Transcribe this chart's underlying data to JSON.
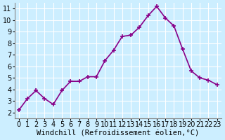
{
  "x": [
    0,
    1,
    2,
    3,
    4,
    5,
    6,
    7,
    8,
    9,
    10,
    11,
    12,
    13,
    14,
    15,
    16,
    17,
    18,
    19,
    20,
    21,
    22,
    23
  ],
  "y": [
    2.2,
    3.2,
    3.9,
    3.2,
    2.7,
    3.9,
    4.7,
    4.7,
    5.1,
    5.1,
    6.5,
    7.4,
    8.6,
    8.7,
    9.4,
    10.4,
    11.2,
    10.2,
    9.5,
    7.5,
    5.6,
    5.0,
    4.8,
    4.4
  ],
  "line_color": "#880088",
  "marker": "+",
  "marker_size": 5,
  "bg_color": "#cceeff",
  "grid_color": "#ffffff",
  "xlabel": "Windchill (Refroidissement éolien,°C)",
  "xlim": [
    -0.5,
    23.5
  ],
  "ylim": [
    1.5,
    11.5
  ],
  "xticks": [
    0,
    1,
    2,
    3,
    4,
    5,
    6,
    7,
    8,
    9,
    10,
    11,
    12,
    13,
    14,
    15,
    16,
    17,
    18,
    19,
    20,
    21,
    22,
    23
  ],
  "yticks": [
    2,
    3,
    4,
    5,
    6,
    7,
    8,
    9,
    10,
    11
  ],
  "xlabel_fontsize": 7.5,
  "tick_fontsize": 7,
  "line_width": 1.2
}
